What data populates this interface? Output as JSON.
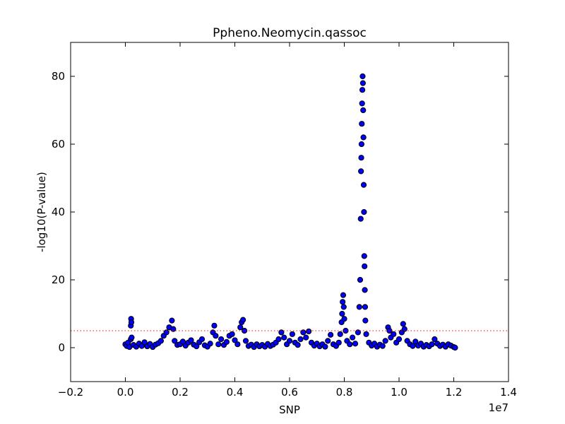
{
  "chart_data": {
    "type": "scatter",
    "title": "Ppheno.Neomycin.qassoc",
    "xlabel": "SNP",
    "ylabel": "-log10(P-value)",
    "x_offset_label": "1e7",
    "xlim": [
      -0.2,
      1.4
    ],
    "ylim": [
      -10,
      90
    ],
    "x_units": "1e7",
    "xticks": [
      -0.2,
      0.0,
      0.2,
      0.4,
      0.6,
      0.8,
      1.0,
      1.2,
      1.4
    ],
    "xtick_labels": [
      "−0.2",
      "0.0",
      "0.2",
      "0.4",
      "0.6",
      "0.8",
      "1.0",
      "1.2",
      "1.4"
    ],
    "yticks": [
      0,
      20,
      40,
      60,
      80
    ],
    "ytick_labels": [
      "0",
      "20",
      "40",
      "60",
      "80"
    ],
    "threshold": {
      "y": 5,
      "color": "#ff0000",
      "style": "dotted"
    },
    "marker_fill": "#0000ff",
    "marker_edge": "#000000",
    "series": [
      {
        "points": [
          [
            0.0,
            1.0
          ],
          [
            0.005,
            0.5
          ],
          [
            0.01,
            1.5
          ],
          [
            0.015,
            0.2
          ],
          [
            0.02,
            2.5
          ],
          [
            0.02,
            6.5
          ],
          [
            0.021,
            8.5
          ],
          [
            0.022,
            7.5
          ],
          [
            0.023,
            3.0
          ],
          [
            0.03,
            0.8
          ],
          [
            0.04,
            0.3
          ],
          [
            0.05,
            1.2
          ],
          [
            0.06,
            0.5
          ],
          [
            0.07,
            1.6
          ],
          [
            0.08,
            0.4
          ],
          [
            0.09,
            1.1
          ],
          [
            0.1,
            0.2
          ],
          [
            0.11,
            0.9
          ],
          [
            0.12,
            1.3
          ],
          [
            0.13,
            2.0
          ],
          [
            0.14,
            3.5
          ],
          [
            0.15,
            4.5
          ],
          [
            0.16,
            6.0
          ],
          [
            0.17,
            8.0
          ],
          [
            0.175,
            5.5
          ],
          [
            0.18,
            2.0
          ],
          [
            0.19,
            0.8
          ],
          [
            0.2,
            1.0
          ],
          [
            0.21,
            1.8
          ],
          [
            0.22,
            0.6
          ],
          [
            0.23,
            1.5
          ],
          [
            0.24,
            2.2
          ],
          [
            0.25,
            0.9
          ],
          [
            0.26,
            0.4
          ],
          [
            0.27,
            1.6
          ],
          [
            0.28,
            2.5
          ],
          [
            0.29,
            0.7
          ],
          [
            0.3,
            0.3
          ],
          [
            0.31,
            1.2
          ],
          [
            0.32,
            4.5
          ],
          [
            0.325,
            6.5
          ],
          [
            0.33,
            3.5
          ],
          [
            0.34,
            1.0
          ],
          [
            0.35,
            2.5
          ],
          [
            0.36,
            0.8
          ],
          [
            0.37,
            1.7
          ],
          [
            0.38,
            3.5
          ],
          [
            0.39,
            4.0
          ],
          [
            0.4,
            2.2
          ],
          [
            0.41,
            1.0
          ],
          [
            0.42,
            6.0
          ],
          [
            0.425,
            7.5
          ],
          [
            0.43,
            8.2
          ],
          [
            0.435,
            5.0
          ],
          [
            0.44,
            2.0
          ],
          [
            0.45,
            0.5
          ],
          [
            0.46,
            0.9
          ],
          [
            0.47,
            0.2
          ],
          [
            0.48,
            1.0
          ],
          [
            0.49,
            0.4
          ],
          [
            0.5,
            0.8
          ],
          [
            0.51,
            0.3
          ],
          [
            0.52,
            1.1
          ],
          [
            0.53,
            0.5
          ],
          [
            0.54,
            0.9
          ],
          [
            0.55,
            1.5
          ],
          [
            0.56,
            2.5
          ],
          [
            0.57,
            4.5
          ],
          [
            0.58,
            3.0
          ],
          [
            0.59,
            1.0
          ],
          [
            0.6,
            2.0
          ],
          [
            0.61,
            4.0
          ],
          [
            0.62,
            1.5
          ],
          [
            0.63,
            0.8
          ],
          [
            0.64,
            2.5
          ],
          [
            0.65,
            4.5
          ],
          [
            0.66,
            3.0
          ],
          [
            0.67,
            4.8
          ],
          [
            0.68,
            1.5
          ],
          [
            0.69,
            0.6
          ],
          [
            0.7,
            1.2
          ],
          [
            0.71,
            0.4
          ],
          [
            0.72,
            1.0
          ],
          [
            0.73,
            0.3
          ],
          [
            0.74,
            2.0
          ],
          [
            0.75,
            3.8
          ],
          [
            0.76,
            1.0
          ],
          [
            0.77,
            0.5
          ],
          [
            0.78,
            1.5
          ],
          [
            0.785,
            4.0
          ],
          [
            0.79,
            7.5
          ],
          [
            0.792,
            10.0
          ],
          [
            0.794,
            13.5
          ],
          [
            0.796,
            15.5
          ],
          [
            0.798,
            12.0
          ],
          [
            0.8,
            8.5
          ],
          [
            0.805,
            5.0
          ],
          [
            0.81,
            2.0
          ],
          [
            0.82,
            1.0
          ],
          [
            0.83,
            3.0
          ],
          [
            0.84,
            1.2
          ],
          [
            0.85,
            4.5
          ],
          [
            0.855,
            12.0
          ],
          [
            0.858,
            20.0
          ],
          [
            0.86,
            38.0
          ],
          [
            0.861,
            52.0
          ],
          [
            0.862,
            56.0
          ],
          [
            0.863,
            60.0
          ],
          [
            0.864,
            66.0
          ],
          [
            0.865,
            72.0
          ],
          [
            0.866,
            76.0
          ],
          [
            0.867,
            80.0
          ],
          [
            0.868,
            78.0
          ],
          [
            0.869,
            70.0
          ],
          [
            0.87,
            62.0
          ],
          [
            0.871,
            48.0
          ],
          [
            0.872,
            40.0
          ],
          [
            0.873,
            27.0
          ],
          [
            0.874,
            24.0
          ],
          [
            0.875,
            17.0
          ],
          [
            0.876,
            12.0
          ],
          [
            0.877,
            8.0
          ],
          [
            0.88,
            4.0
          ],
          [
            0.89,
            1.5
          ],
          [
            0.9,
            0.6
          ],
          [
            0.91,
            1.2
          ],
          [
            0.92,
            0.3
          ],
          [
            0.93,
            0.9
          ],
          [
            0.94,
            0.5
          ],
          [
            0.95,
            2.0
          ],
          [
            0.96,
            6.0
          ],
          [
            0.965,
            5.0
          ],
          [
            0.97,
            3.0
          ],
          [
            0.98,
            4.0
          ],
          [
            0.99,
            1.5
          ],
          [
            1.0,
            2.5
          ],
          [
            1.01,
            4.5
          ],
          [
            1.015,
            7.0
          ],
          [
            1.02,
            5.5
          ],
          [
            1.03,
            2.0
          ],
          [
            1.04,
            1.0
          ],
          [
            1.05,
            0.5
          ],
          [
            1.06,
            1.8
          ],
          [
            1.07,
            0.6
          ],
          [
            1.08,
            1.2
          ],
          [
            1.09,
            0.3
          ],
          [
            1.1,
            0.8
          ],
          [
            1.11,
            0.4
          ],
          [
            1.12,
            1.0
          ],
          [
            1.13,
            2.5
          ],
          [
            1.14,
            1.2
          ],
          [
            1.15,
            0.5
          ],
          [
            1.16,
            0.9
          ],
          [
            1.17,
            0.3
          ],
          [
            1.18,
            1.0
          ],
          [
            1.19,
            0.6
          ],
          [
            1.2,
            0.2
          ],
          [
            1.205,
            0.0
          ]
        ]
      }
    ]
  }
}
